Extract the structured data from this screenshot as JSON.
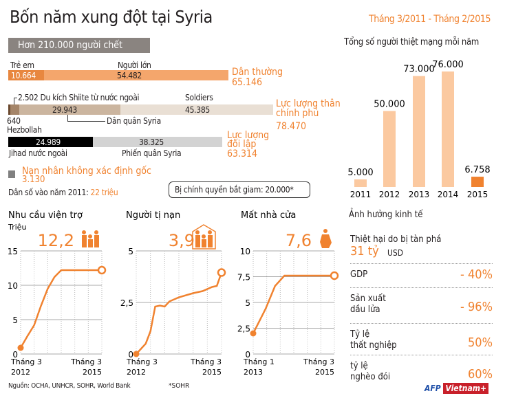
{
  "title": "Bốn năm xung đột tại Syria",
  "date_range": "Tháng 3/2011 - Tháng 2/2015",
  "deaths": {
    "banner": "Hơn 210.000 người chết",
    "civilians": {
      "children_label": "Trẻ em",
      "children": "10.664",
      "adults_label": "Người lớn",
      "adults": "54.482",
      "group_label": "Dân thường",
      "total": "65.146"
    },
    "pro_gov": {
      "hezbollah": "640",
      "hezbollah_label": "Hezbollah",
      "shiite_label": "2.502 Du kích Shiite từ nước ngoài",
      "militia": "29.943",
      "militia_label": "Dân quân Syria",
      "soldiers_label": "Soldiers",
      "soldiers": "45.385",
      "group_label_1": "Lực lượng thân",
      "group_label_2": "chính phủ",
      "total": "78.470"
    },
    "opposition": {
      "jihad": "24.989",
      "jihad_label": "Jihad nước ngoài",
      "rebels": "38.325",
      "rebels_label": "Phiến quân Syria",
      "group_label_1": "Lực lượng",
      "group_label_2": "đối lập",
      "total": "63.314"
    },
    "unknown_label": "Nạn nhân không xác định gốc",
    "unknown": "3.130",
    "population_label": "Dân số vào năm 2011: ",
    "population": "22 triệu",
    "detained": "Bị chính quyền bắt giam: 20.000*"
  },
  "colors": {
    "accent": "#f0822f",
    "light_accent": "#fbc9a0",
    "black": "#000000",
    "gray": "#808080"
  },
  "chart_data": [
    {
      "type": "bar",
      "title": "Tổng số người thiệt mạng mỗi năm",
      "categories": [
        "2011",
        "2012",
        "2013",
        "2014",
        "2015"
      ],
      "values": [
        5000,
        50000,
        73000,
        76000,
        6758
      ],
      "labels": [
        "5.000",
        "50.000",
        "73.000",
        "76.000",
        "6.758"
      ],
      "ylim": [
        0,
        76000
      ],
      "grid": false
    },
    {
      "type": "line",
      "title": "Nhu cầu viện trợ",
      "ylabel": "Triệu",
      "headline": "12,2",
      "icon": "family-icon",
      "ylim": [
        0,
        15
      ],
      "yticks": [
        "0",
        "5",
        "10",
        "15"
      ],
      "ytick_values": [
        0,
        5,
        10,
        15
      ],
      "x_start": [
        "Tháng 3",
        "2012"
      ],
      "x_end": [
        "Tháng 3",
        "2015"
      ],
      "months": 36,
      "points": [
        [
          0,
          0.9
        ],
        [
          3,
          2.6
        ],
        [
          6,
          4.2
        ],
        [
          9,
          7.0
        ],
        [
          12,
          9.5
        ],
        [
          15,
          11.2
        ],
        [
          18,
          12.2
        ],
        [
          36,
          12.2
        ]
      ]
    },
    {
      "type": "line",
      "title": "Người tị nạn",
      "headline": "3,9",
      "icon": "family-house-icon",
      "ylim": [
        0,
        5
      ],
      "yticks": [
        "0",
        "2,5",
        "5"
      ],
      "ytick_values": [
        0,
        2.5,
        5
      ],
      "x_start": [
        "Tháng 3",
        "2012"
      ],
      "x_end": [
        "Tháng 3",
        "2015"
      ],
      "months": 36,
      "points": [
        [
          0,
          0
        ],
        [
          4,
          0.5
        ],
        [
          6,
          1.1
        ],
        [
          8,
          2.3
        ],
        [
          10,
          2.35
        ],
        [
          12,
          2.3
        ],
        [
          14,
          2.55
        ],
        [
          18,
          2.75
        ],
        [
          24,
          2.95
        ],
        [
          28,
          3.05
        ],
        [
          32,
          3.25
        ],
        [
          34,
          3.3
        ],
        [
          36,
          3.95
        ]
      ]
    },
    {
      "type": "line",
      "title": "Mất nhà cửa",
      "headline": "7,6",
      "icon": "refugee-mother-icon",
      "ylim": [
        0,
        10
      ],
      "yticks": [
        "0",
        "2,5",
        "5",
        "7,5",
        "10"
      ],
      "ytick_values": [
        0,
        2.5,
        5,
        7.5,
        10
      ],
      "x_start": [
        "Tháng 1",
        "2013"
      ],
      "x_end": [
        "Tháng 3",
        "2015"
      ],
      "months": 26,
      "points": [
        [
          0,
          2.0
        ],
        [
          4,
          4.4
        ],
        [
          7,
          6.6
        ],
        [
          10,
          7.6
        ],
        [
          26,
          7.6
        ]
      ]
    }
  ],
  "economy": {
    "title": "Ảnh hưởng kinh tế",
    "damage_label": "Thiệt hại do bị tàn phá",
    "damage_value": "31 tỷ",
    "damage_unit": "USD",
    "rows": [
      {
        "label_1": "GDP",
        "label_2": "",
        "value": "- 40%"
      },
      {
        "label_1": "Sản xuất",
        "label_2": "dầu lửa",
        "value": "- 96%"
      },
      {
        "label_1": "Tỷ lệ",
        "label_2": "thất nghiệp",
        "value": "50%"
      },
      {
        "label_1": "tỷ lệ",
        "label_2": "nghèo đói",
        "value": "60%"
      }
    ]
  },
  "footer": {
    "source": "Nguồn: OCHA, UNHCR, SOHR, World Bank",
    "note": "*SOHR",
    "logo_afp": "AFP",
    "logo_vietnam": "Vietnam+"
  }
}
